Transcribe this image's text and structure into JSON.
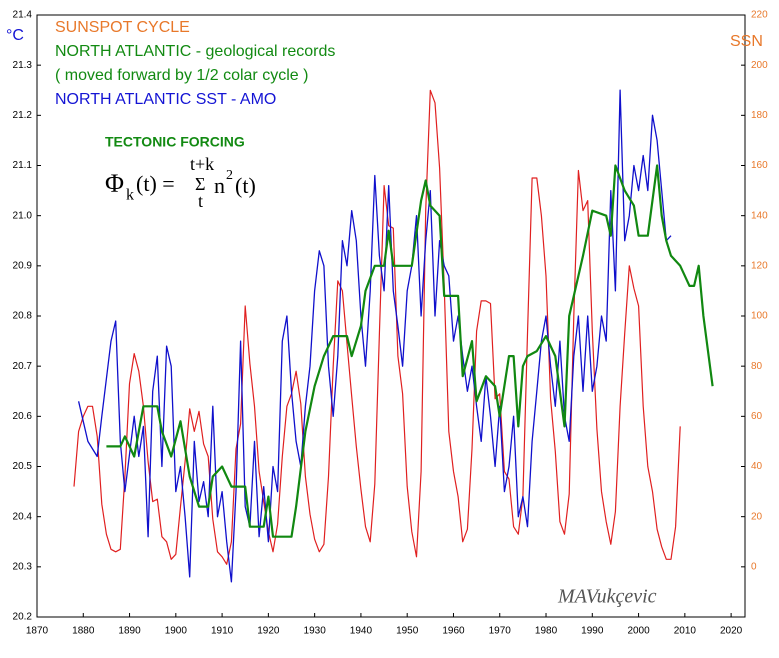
{
  "chart_data": {
    "type": "line",
    "title_lines": [
      {
        "text": "SUNSPOT CYCLE",
        "color": "#e8782a"
      },
      {
        "text": "NORTH ATLANTIC - geological records",
        "color": "#128a12"
      },
      {
        "text": "( moved forward by 1/2 colar cycle )",
        "color": "#128a12"
      },
      {
        "text": "NORTH ATLANTIC SST - AMO",
        "color": "#1414d4"
      }
    ],
    "ylabel": "°C",
    "y2label": "SSN",
    "annotation": "TECTONIC FORCING",
    "formula": [
      "Φ",
      "k",
      "(t) = ",
      "Σ",
      "t+k",
      "t",
      "n",
      "2",
      "(t)"
    ],
    "signature": "MAVukçevic",
    "xlim": [
      1870,
      2023
    ],
    "xticks": [
      1870,
      1880,
      1890,
      1900,
      1910,
      1920,
      1930,
      1940,
      1950,
      1960,
      1970,
      1980,
      1990,
      2000,
      2010,
      2020
    ],
    "ylim": [
      20.2,
      21.4
    ],
    "yticks": [
      20.2,
      20.3,
      20.4,
      20.5,
      20.6,
      20.7,
      20.8,
      20.9,
      {
        "value": 21,
        "label": "21.0"
      },
      21.1,
      21.2,
      21.3,
      21.4
    ],
    "y2lim": [
      -20,
      220
    ],
    "y2ticks": [
      0,
      20,
      40,
      60,
      80,
      100,
      120,
      140,
      160,
      180,
      200,
      220
    ],
    "grid": false,
    "series": [
      {
        "name": "SUNSPOT CYCLE",
        "color": "#e02020",
        "axis": "y2",
        "x": [
          1878,
          1879,
          1880,
          1881,
          1882,
          1883,
          1884,
          1885,
          1886,
          1887,
          1888,
          1889,
          1890,
          1891,
          1892,
          1893,
          1894,
          1895,
          1896,
          1897,
          1898,
          1899,
          1900,
          1901,
          1902,
          1903,
          1904,
          1905,
          1906,
          1907,
          1908,
          1909,
          1910,
          1911,
          1912,
          1913,
          1914,
          1915,
          1916,
          1917,
          1918,
          1919,
          1920,
          1921,
          1922,
          1923,
          1924,
          1925,
          1926,
          1927,
          1928,
          1929,
          1930,
          1931,
          1932,
          1933,
          1934,
          1935,
          1936,
          1937,
          1938,
          1939,
          1940,
          1941,
          1942,
          1943,
          1944,
          1945,
          1946,
          1947,
          1948,
          1949,
          1950,
          1951,
          1952,
          1953,
          1954,
          1955,
          1956,
          1957,
          1958,
          1959,
          1960,
          1961,
          1962,
          1963,
          1964,
          1965,
          1966,
          1967,
          1968,
          1969,
          1970,
          1971,
          1972,
          1973,
          1974,
          1975,
          1976,
          1977,
          1978,
          1979,
          1980,
          1981,
          1982,
          1983,
          1984,
          1985,
          1986,
          1987,
          1988,
          1989,
          1990,
          1991,
          1992,
          1993,
          1994,
          1995,
          1996,
          1997,
          1998,
          1999,
          2000,
          2001,
          2002,
          2003,
          2004,
          2005,
          2006,
          2007,
          2008,
          2009
        ],
        "values": [
          32,
          54,
          60,
          64,
          64,
          52,
          25,
          13,
          7,
          6,
          7,
          36,
          73,
          85,
          78,
          64,
          42,
          26,
          27,
          12,
          10,
          3,
          5,
          24,
          42,
          63,
          54,
          62,
          49,
          44,
          19,
          6,
          4,
          1,
          10,
          47,
          57,
          104,
          81,
          64,
          38,
          26,
          14,
          6,
          17,
          44,
          64,
          69,
          78,
          65,
          36,
          21,
          11,
          6,
          9,
          36,
          80,
          114,
          110,
          89,
          68,
          48,
          31,
          16,
          10,
          33,
          93,
          152,
          136,
          135,
          84,
          69,
          32,
          14,
          4,
          38,
          142,
          190,
          185,
          159,
          112,
          54,
          38,
          28,
          10,
          15,
          47,
          94,
          106,
          106,
          105,
          67,
          69,
          38,
          35,
          16,
          13,
          28,
          93,
          155,
          155,
          140,
          116,
          67,
          46,
          18,
          13,
          29,
          100,
          158,
          142,
          146,
          94,
          55,
          30,
          18,
          9,
          22,
          64,
          93,
          120,
          111,
          104,
          64,
          40,
          30,
          15,
          8,
          3,
          3,
          16,
          56
        ]
      },
      {
        "name": "NORTH ATLANTIC SST - AMO",
        "color": "#1010cc",
        "x": [
          1879,
          1881,
          1883,
          1884,
          1886,
          1887,
          1888,
          1889,
          1891,
          1892,
          1893,
          1894,
          1895,
          1896,
          1897,
          1898,
          1899,
          1900,
          1901,
          1902,
          1903,
          1904,
          1905,
          1906,
          1907,
          1908,
          1909,
          1910,
          1911,
          1912,
          1913,
          1914,
          1915,
          1916,
          1917,
          1918,
          1919,
          1920,
          1921,
          1922,
          1923,
          1924,
          1925,
          1926,
          1927,
          1928,
          1929,
          1930,
          1931,
          1932,
          1933,
          1934,
          1935,
          1936,
          1937,
          1938,
          1939,
          1940,
          1941,
          1942,
          1943,
          1944,
          1945,
          1946,
          1947,
          1948,
          1949,
          1950,
          1951,
          1952,
          1953,
          1954,
          1955,
          1956,
          1957,
          1958,
          1959,
          1960,
          1961,
          1962,
          1963,
          1964,
          1965,
          1966,
          1967,
          1968,
          1969,
          1970,
          1971,
          1972,
          1973,
          1974,
          1975,
          1976,
          1977,
          1978,
          1979,
          1980,
          1981,
          1982,
          1983,
          1984,
          1985,
          1986,
          1987,
          1988,
          1989,
          1990,
          1991,
          1992,
          1993,
          1994,
          1995,
          1996,
          1997,
          1998,
          1999,
          2000,
          2001,
          2002,
          2003,
          2004,
          2005,
          2006,
          2007
        ],
        "values": [
          20.63,
          20.55,
          20.52,
          20.6,
          20.75,
          20.79,
          20.55,
          20.45,
          20.6,
          20.52,
          20.58,
          20.36,
          20.65,
          20.72,
          20.5,
          20.74,
          20.7,
          20.45,
          20.5,
          20.4,
          20.28,
          20.55,
          20.43,
          20.47,
          20.4,
          20.62,
          20.4,
          20.45,
          20.35,
          20.27,
          20.45,
          20.75,
          20.42,
          20.38,
          20.55,
          20.36,
          20.46,
          20.35,
          20.5,
          20.45,
          20.75,
          20.8,
          20.65,
          20.55,
          20.5,
          20.62,
          20.7,
          20.85,
          20.93,
          20.9,
          20.7,
          20.6,
          20.72,
          20.95,
          20.9,
          21.01,
          20.95,
          20.8,
          20.7,
          20.85,
          21.08,
          20.92,
          20.85,
          21.06,
          20.85,
          20.78,
          20.7,
          20.85,
          20.9,
          21.0,
          20.8,
          20.95,
          21.05,
          20.8,
          20.95,
          20.9,
          20.88,
          20.75,
          20.8,
          20.72,
          20.65,
          20.7,
          20.62,
          20.55,
          20.68,
          20.6,
          20.5,
          20.62,
          20.45,
          20.5,
          20.6,
          20.4,
          20.44,
          20.38,
          20.55,
          20.65,
          20.75,
          20.8,
          20.7,
          20.62,
          20.75,
          20.6,
          20.55,
          20.72,
          20.8,
          20.65,
          20.8,
          20.65,
          20.7,
          20.8,
          20.75,
          21.05,
          20.85,
          21.25,
          20.95,
          21.0,
          21.1,
          21.05,
          21.12,
          21.05,
          21.2,
          21.15,
          21.05,
          20.95,
          20.96
        ]
      },
      {
        "name": "NORTH ATLANTIC - geological records",
        "color": "#118811",
        "x": [
          1885,
          1888,
          1889,
          1891,
          1893,
          1896,
          1897,
          1899,
          1901,
          1903,
          1905,
          1907,
          1908,
          1910,
          1912,
          1915,
          1916,
          1919,
          1920,
          1921,
          1925,
          1926,
          1928,
          1930,
          1932,
          1934,
          1937,
          1938,
          1940,
          1941,
          1943,
          1945,
          1946,
          1947,
          1949,
          1951,
          1953,
          1954,
          1955,
          1957,
          1958,
          1961,
          1962,
          1964,
          1965,
          1967,
          1969,
          1970,
          1972,
          1973,
          1974,
          1975,
          1976,
          1978,
          1980,
          1982,
          1983,
          1984,
          1985,
          1987,
          1988,
          1990,
          1993,
          1994,
          1995,
          1997,
          1999,
          2000,
          2002,
          2004,
          2005,
          2006,
          2007,
          2009,
          2011,
          2012,
          2013,
          2014,
          2016
        ],
        "values": [
          20.54,
          20.54,
          20.56,
          20.52,
          20.62,
          20.62,
          20.57,
          20.52,
          20.59,
          20.48,
          20.42,
          20.42,
          20.48,
          20.5,
          20.46,
          20.46,
          20.38,
          20.38,
          20.44,
          20.36,
          20.36,
          20.42,
          20.57,
          20.66,
          20.72,
          20.76,
          20.76,
          20.72,
          20.78,
          20.85,
          20.9,
          20.9,
          20.97,
          20.9,
          20.9,
          20.9,
          21.03,
          21.07,
          21.02,
          21.0,
          20.84,
          20.84,
          20.68,
          20.75,
          20.63,
          20.68,
          20.66,
          20.6,
          20.72,
          20.72,
          20.58,
          20.7,
          20.72,
          20.73,
          20.76,
          20.72,
          20.65,
          20.58,
          20.8,
          20.88,
          20.92,
          21.01,
          21.0,
          20.96,
          21.1,
          21.05,
          21.02,
          20.96,
          20.96,
          21.1,
          21.0,
          20.95,
          20.92,
          20.9,
          20.86,
          20.86,
          20.9,
          20.8,
          20.66
        ]
      }
    ]
  }
}
